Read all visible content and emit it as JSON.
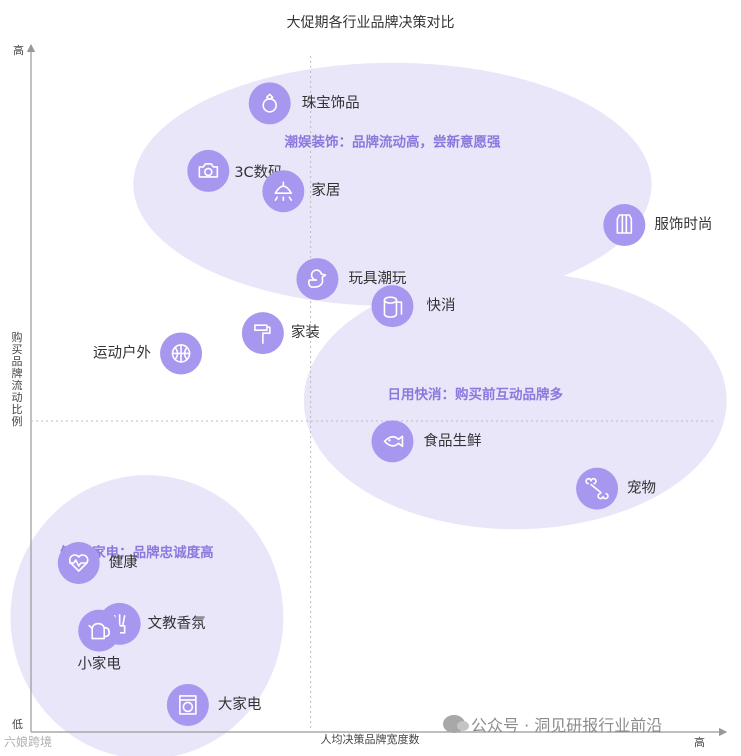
{
  "chart_data": {
    "type": "scatter",
    "title": "大促期各行业品牌决策对比",
    "xlabel": "人均决策品牌宽度数",
    "ylabel": "购买品牌流动比例",
    "x_high_label": "高",
    "y_high_label": "高",
    "origin_label": "低",
    "xlim": [
      0,
      100
    ],
    "ylim": [
      0,
      100
    ],
    "grid": false,
    "reference_lines": {
      "x": 41,
      "y": 46
    },
    "points": [
      {
        "name": "珠宝饰品",
        "x": 35,
        "y": 93,
        "icon": "ring-icon"
      },
      {
        "name": "3C数码",
        "x": 26,
        "y": 83,
        "icon": "camera-icon"
      },
      {
        "name": "家居",
        "x": 37,
        "y": 80,
        "icon": "lamp-icon"
      },
      {
        "name": "服饰时尚",
        "x": 87,
        "y": 75,
        "icon": "dress-icon"
      },
      {
        "name": "玩具潮玩",
        "x": 42,
        "y": 67,
        "icon": "duck-icon"
      },
      {
        "name": "快消",
        "x": 53,
        "y": 63,
        "icon": "tissue-roll-icon"
      },
      {
        "name": "家装",
        "x": 34,
        "y": 59,
        "icon": "paint-roller-icon"
      },
      {
        "name": "运动户外",
        "x": 22,
        "y": 56,
        "icon": "basketball-icon"
      },
      {
        "name": "食品生鲜",
        "x": 53,
        "y": 43,
        "icon": "fish-icon"
      },
      {
        "name": "宠物",
        "x": 83,
        "y": 36,
        "icon": "bone-icon"
      },
      {
        "name": "健康",
        "x": 7,
        "y": 25,
        "icon": "heart-pulse-icon"
      },
      {
        "name": "文教香氛",
        "x": 13,
        "y": 16,
        "icon": "incense-icon"
      },
      {
        "name": "小家电",
        "x": 10,
        "y": 15,
        "icon": "kettle-icon"
      },
      {
        "name": "大家电",
        "x": 23,
        "y": 4,
        "icon": "washing-machine-icon"
      }
    ],
    "clusters": [
      {
        "label": "潮娱装饰：品牌流动高，尝新意愿强",
        "cx": 53,
        "cy": 81,
        "rx": 38,
        "ry": 18
      },
      {
        "label": "日用快消：购买前互动品牌多",
        "cx": 71,
        "cy": 49,
        "rx": 31,
        "ry": 19
      },
      {
        "label": "健康/家电：品牌忠诚度高",
        "cx": 17,
        "cy": 17,
        "rx": 20,
        "ry": 21
      }
    ]
  },
  "watermark": {
    "text": "公众号 · 洞见研报行业前沿"
  },
  "brand_mark": {
    "text": "六娘跨境"
  },
  "colors": {
    "icon_fill": "#a897ef",
    "cluster_fill": "#e9e6fa",
    "cluster_label": "#8c78dc",
    "axis": "#999999",
    "text": "#333333"
  }
}
